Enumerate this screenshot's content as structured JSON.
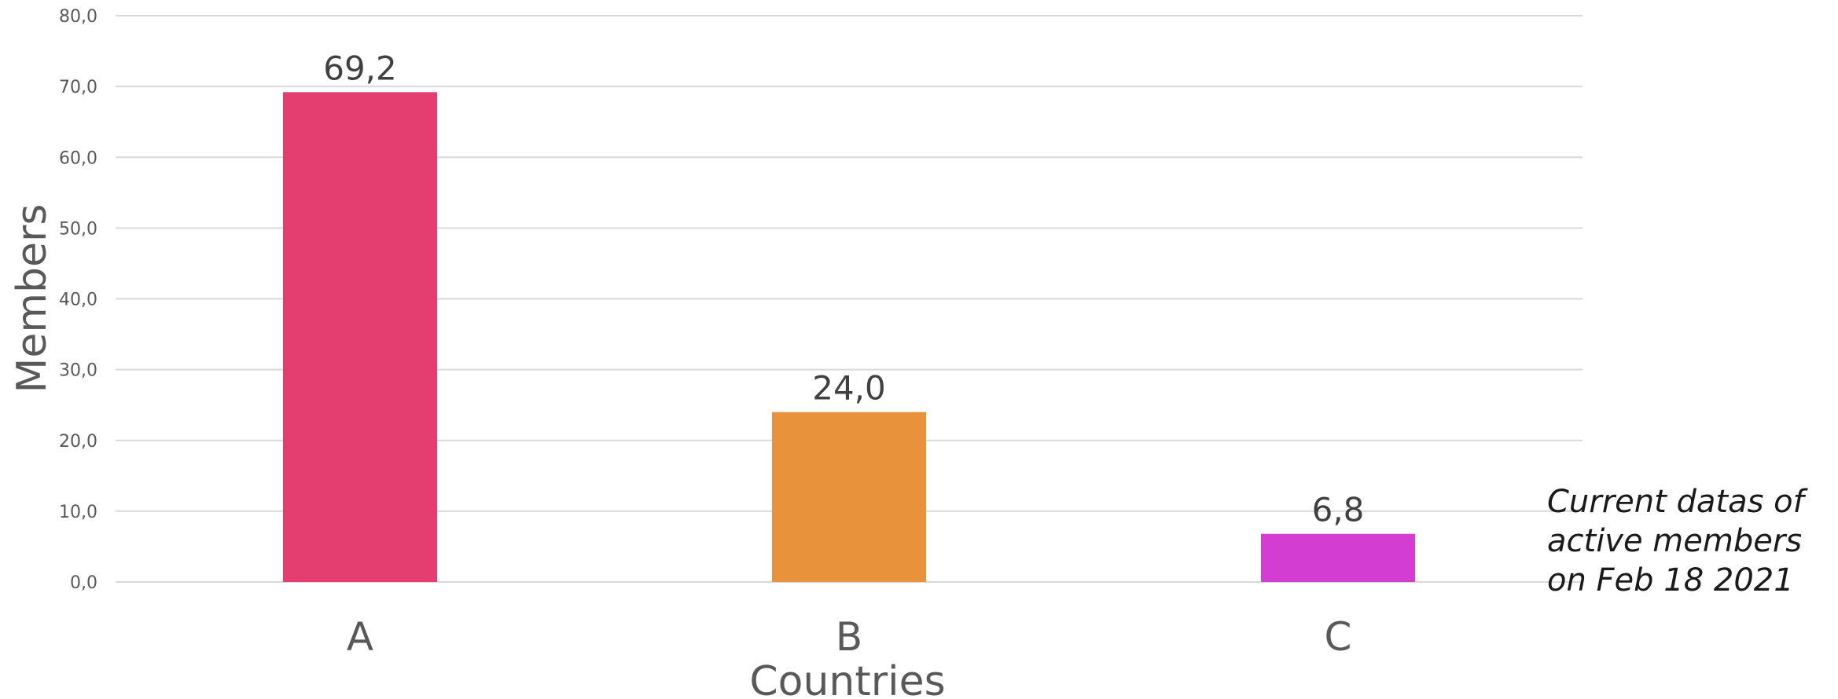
{
  "chart_data": {
    "type": "bar",
    "categories": [
      "A",
      "B",
      "C"
    ],
    "values": [
      69.2,
      24.0,
      6.8
    ],
    "data_labels": [
      "69,2",
      "24,0",
      "6,8"
    ],
    "colors": [
      "#e33e6f",
      "#e8923b",
      "#d43dd1"
    ],
    "title": "",
    "xlabel": "Countries",
    "ylabel": "Members",
    "ylim": [
      0,
      80
    ],
    "yticks": [
      0,
      10,
      20,
      30,
      40,
      50,
      60,
      70,
      80
    ],
    "ytick_labels": [
      "0,0",
      "10,0",
      "20,0",
      "30,0",
      "40,0",
      "50,0",
      "60,0",
      "70,0",
      "80,0"
    ],
    "grid": true,
    "legend": "none",
    "annotation": [
      "Current datas of",
      "active members",
      "on Feb 18 2021"
    ]
  }
}
